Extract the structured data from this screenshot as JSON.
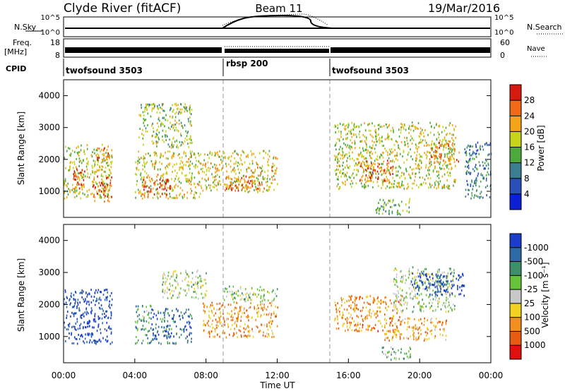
{
  "header": {
    "station": "Clyde River (fitACF)",
    "beam": "Beam 11",
    "date": "19/Mar/2016"
  },
  "summary_panels": {
    "nsky_label": "N.Sky",
    "nsky_ticks": [
      "10^5",
      "10^0"
    ],
    "nsearch_label": "N.Search",
    "nsearch_ticks": [
      "10^5",
      "10^0"
    ],
    "freq_label": "Freq.",
    "freq_unit": "[MHz]",
    "freq_ticks": [
      "18",
      "8"
    ],
    "nave_label": "Nave",
    "nave_ticks": [
      "60",
      "0"
    ],
    "cpid_label": "CPID",
    "cpid_segments": [
      {
        "label": "twofsound 3503",
        "start_hour": 0
      },
      {
        "label": "rbsp 200",
        "start_hour": 9
      },
      {
        "label": "twofsound 3503",
        "start_hour": 15
      }
    ]
  },
  "chart_data": [
    {
      "type": "heatmap",
      "name": "power",
      "ylabel": "Slant Range [km]",
      "ylim": [
        180,
        4500
      ],
      "yticks": [
        1000,
        2000,
        3000,
        4000
      ],
      "xlim": [
        0,
        24
      ],
      "colorbar": {
        "label": "Power [dB]",
        "ticks": [
          "4",
          "8",
          "12",
          "16",
          "20",
          "24",
          "28"
        ],
        "colors": [
          "#0b1fd6",
          "#2a4fb8",
          "#3a7f8f",
          "#4caa3c",
          "#c7d21a",
          "#f5a41a",
          "#f06a18",
          "#d61a10"
        ]
      },
      "scatter_regions": [
        {
          "t0": 0.0,
          "t1": 2.7,
          "r0": 800,
          "r1": 2500,
          "level": 0.55
        },
        {
          "t0": 0.5,
          "t1": 1.2,
          "r0": 1100,
          "r1": 1800,
          "level": 0.9
        },
        {
          "t0": 1.6,
          "t1": 2.7,
          "r0": 700,
          "r1": 1500,
          "level": 0.85
        },
        {
          "t0": 1.8,
          "t1": 2.6,
          "r0": 1900,
          "r1": 2400,
          "level": 0.8
        },
        {
          "t0": 4.0,
          "t1": 7.8,
          "r0": 800,
          "r1": 2300,
          "level": 0.6
        },
        {
          "t0": 4.4,
          "t1": 6.2,
          "r0": 900,
          "r1": 1400,
          "level": 0.88
        },
        {
          "t0": 4.2,
          "t1": 7.2,
          "r0": 2400,
          "r1": 3800,
          "level": 0.5
        },
        {
          "t0": 7.8,
          "t1": 12.0,
          "r0": 1000,
          "r1": 2300,
          "level": 0.6
        },
        {
          "t0": 9.0,
          "t1": 11.0,
          "r0": 1050,
          "r1": 1500,
          "level": 0.85
        },
        {
          "t0": 15.2,
          "t1": 22.0,
          "r0": 1100,
          "r1": 3200,
          "level": 0.55
        },
        {
          "t0": 16.5,
          "t1": 18.5,
          "r0": 1300,
          "r1": 2000,
          "level": 0.8
        },
        {
          "t0": 17.5,
          "t1": 19.5,
          "r0": 300,
          "r1": 800,
          "level": 0.45
        },
        {
          "t0": 20.5,
          "t1": 22.2,
          "r0": 1900,
          "r1": 2600,
          "level": 0.78
        },
        {
          "t0": 22.5,
          "t1": 24.0,
          "r0": 800,
          "r1": 2600,
          "level": 0.3
        }
      ]
    },
    {
      "type": "heatmap",
      "name": "velocity",
      "ylabel": "Slant Range [km]",
      "ylim": [
        180,
        4500
      ],
      "yticks": [
        1000,
        2000,
        3000,
        4000
      ],
      "xlim": [
        0,
        24
      ],
      "xticks": [
        "00:00",
        "04:00",
        "08:00",
        "12:00",
        "16:00",
        "20:00",
        "00:00"
      ],
      "xlabel": "Time UT",
      "colorbar": {
        "label": "Velocity [m s⁻¹]",
        "ticks": [
          "1000",
          "500",
          "100",
          "25",
          "-25",
          "-100",
          "-500",
          "-1000"
        ],
        "colors": [
          "#1a3ec8",
          "#2e6aa8",
          "#3f8f6a",
          "#66c43a",
          "#c8c8c8",
          "#f1d21e",
          "#f1901e",
          "#e85b12",
          "#e01010"
        ]
      },
      "scatter_regions": [
        {
          "t0": 0.0,
          "t1": 2.7,
          "r0": 800,
          "r1": 2500,
          "level": 0.05
        },
        {
          "t0": 4.0,
          "t1": 4.9,
          "r0": 800,
          "r1": 2000,
          "level": 0.3
        },
        {
          "t0": 4.9,
          "t1": 7.2,
          "r0": 800,
          "r1": 1900,
          "level": 0.2
        },
        {
          "t0": 5.5,
          "t1": 8.0,
          "r0": 2200,
          "r1": 3100,
          "level": 0.45
        },
        {
          "t0": 7.8,
          "t1": 12.0,
          "r0": 1000,
          "r1": 2100,
          "level": 0.7
        },
        {
          "t0": 9.0,
          "t1": 12.0,
          "r0": 2100,
          "r1": 2600,
          "level": 0.45
        },
        {
          "t0": 15.2,
          "t1": 19.0,
          "r0": 1200,
          "r1": 2300,
          "level": 0.72
        },
        {
          "t0": 17.8,
          "t1": 19.5,
          "r0": 300,
          "r1": 700,
          "level": 0.35
        },
        {
          "t0": 18.5,
          "t1": 22.0,
          "r0": 1800,
          "r1": 3200,
          "level": 0.45
        },
        {
          "t0": 19.5,
          "t1": 22.5,
          "r0": 2300,
          "r1": 3000,
          "level": 0.05
        },
        {
          "t0": 18.0,
          "t1": 21.5,
          "r0": 900,
          "r1": 1600,
          "level": 0.7
        }
      ]
    }
  ]
}
